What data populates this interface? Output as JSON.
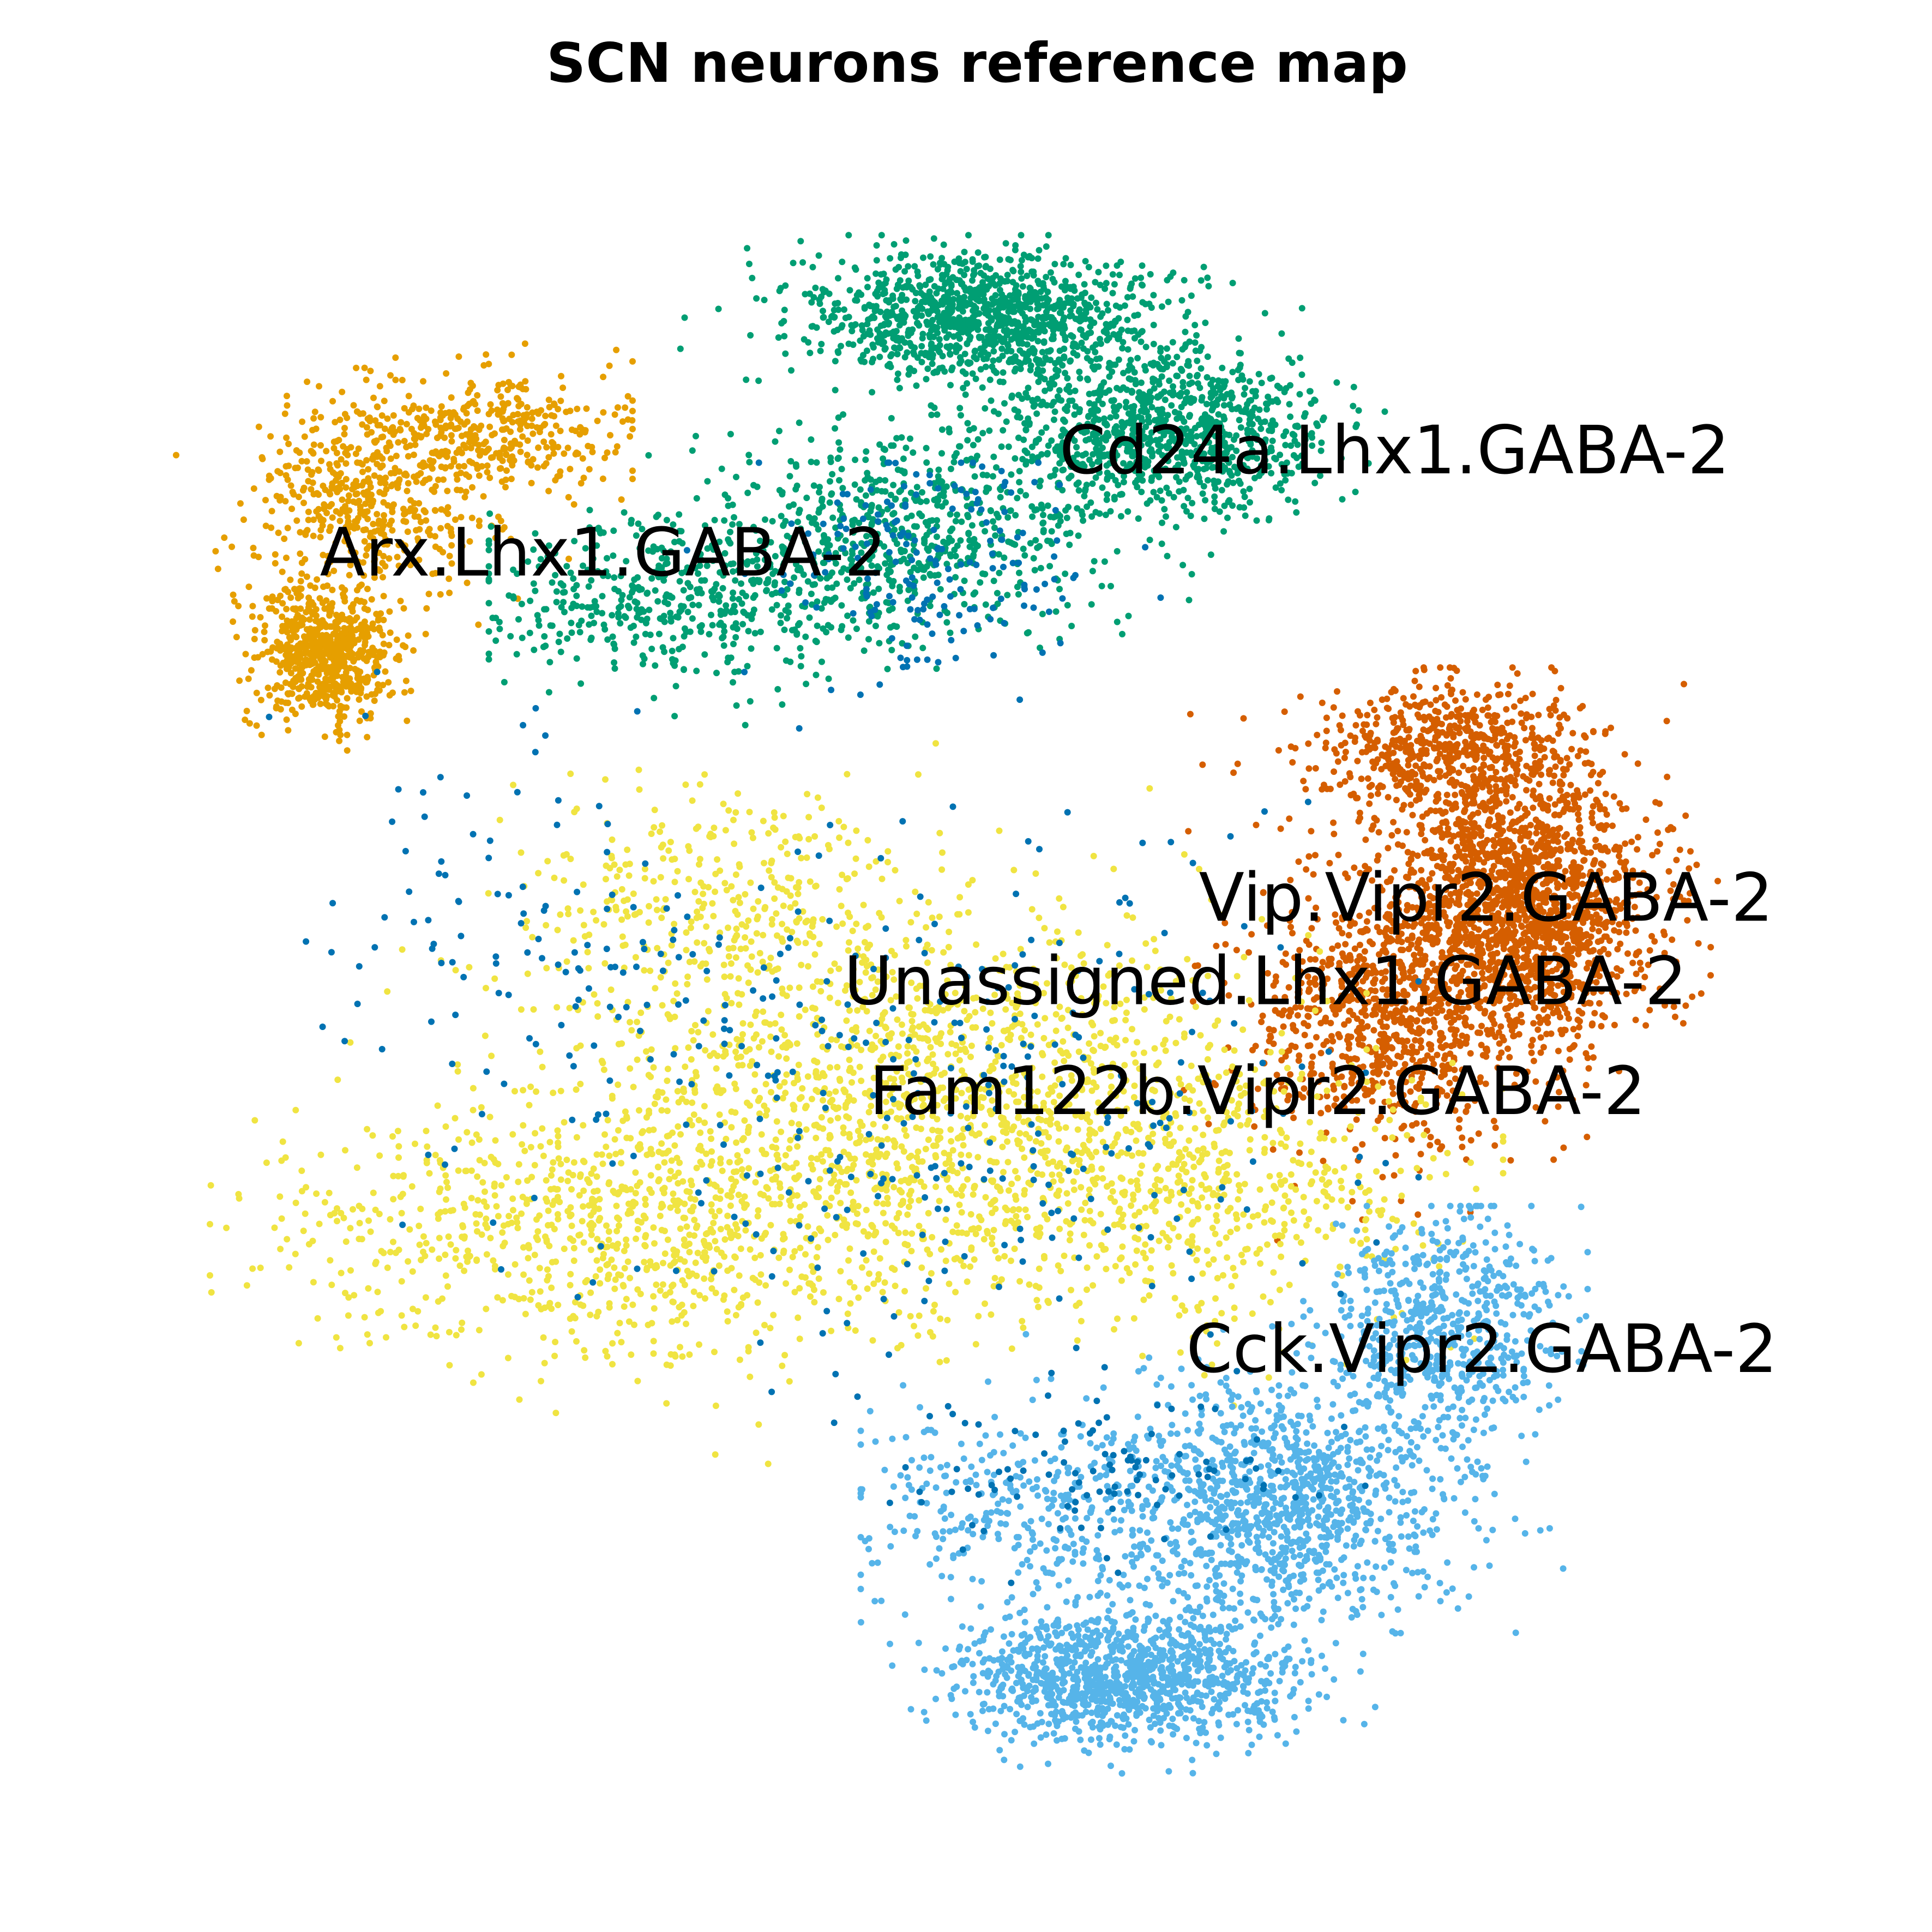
{
  "chart_data": {
    "type": "scatter",
    "title": "SCN neurons reference map",
    "xlabel": "",
    "ylabel": "",
    "axes_visible": false,
    "grid": false,
    "legend": "on-data",
    "clusters": [
      {
        "name": "Arx.Lhx1.GABA-2",
        "color": "#E69F00",
        "label_position": [
          -8.2,
          6.95
        ],
        "extent": {
          "x": [
            -9.9,
            -4.5
          ],
          "y": [
            2.8,
            9.8
          ]
        },
        "density": "medium",
        "centers": [
          {
            "x": -8.15,
            "y": 5.7,
            "weight": 0.45,
            "spread": [
              0.55,
              0.6
            ]
          },
          {
            "x": -7.6,
            "y": 7.7,
            "weight": 0.3,
            "spread": [
              1.0,
              0.75
            ]
          },
          {
            "x": -6.2,
            "y": 8.6,
            "weight": 0.25,
            "spread": [
              1.2,
              0.55
            ]
          }
        ]
      },
      {
        "name": "Cd24a.Lhx1.GABA-2",
        "color": "#009E73",
        "label_position": [
          0.55,
          8.3
        ],
        "extent": {
          "x": [
            -6.2,
            4.4
          ],
          "y": [
            4.0,
            11.2
          ]
        },
        "density": "high",
        "centers": [
          {
            "x": -0.3,
            "y": 10.1,
            "weight": 0.35,
            "spread": [
              1.4,
              0.55
            ]
          },
          {
            "x": 1.8,
            "y": 8.6,
            "weight": 0.3,
            "spread": [
              1.3,
              0.7
            ]
          },
          {
            "x": -1.2,
            "y": 7.3,
            "weight": 0.2,
            "spread": [
              1.6,
              0.9
            ]
          },
          {
            "x": -4.0,
            "y": 6.4,
            "weight": 0.15,
            "spread": [
              1.6,
              0.7
            ]
          }
        ]
      },
      {
        "name": "Vip.Vipr2.GABA-2",
        "color": "#D55E00",
        "label_position": [
          2.2,
          2.4
        ],
        "extent": {
          "x": [
            2.0,
            8.5
          ],
          "y": [
            -2.8,
            5.5
          ]
        },
        "density": "high",
        "centers": [
          {
            "x": 6.0,
            "y": 2.3,
            "weight": 0.55,
            "spread": [
              1.0,
              1.2
            ]
          },
          {
            "x": 4.4,
            "y": 0.9,
            "weight": 0.25,
            "spread": [
              1.1,
              1.2
            ]
          },
          {
            "x": 5.2,
            "y": 4.4,
            "weight": 0.2,
            "spread": [
              1.1,
              0.6
            ]
          }
        ]
      },
      {
        "name": "Unassigned.Lhx1.GABA-2",
        "color": "#0072B2",
        "label_position": [
          -2.0,
          1.3
        ],
        "extent": {
          "x": [
            -8.8,
            4.8
          ],
          "y": [
            -6.8,
            8.2
          ]
        },
        "density": "low",
        "centers": [
          {
            "x": -1.0,
            "y": 7.0,
            "weight": 0.25,
            "spread": [
              1.2,
              0.9
            ]
          },
          {
            "x": -1.0,
            "y": 0.0,
            "weight": 0.45,
            "spread": [
              3.2,
              2.6
            ]
          },
          {
            "x": 1.0,
            "y": -5.0,
            "weight": 0.15,
            "spread": [
              1.5,
              0.8
            ]
          },
          {
            "x": -5.5,
            "y": 2.0,
            "weight": 0.15,
            "spread": [
              1.8,
              1.8
            ]
          }
        ]
      },
      {
        "name": "Fam122b.Vipr2.GABA-2",
        "color": "#F0E442",
        "label_position": [
          -1.7,
          -0.15
        ],
        "extent": {
          "x": [
            -9.5,
            5.8
          ],
          "y": [
            -5.0,
            4.5
          ]
        },
        "density": "high",
        "centers": [
          {
            "x": -1.2,
            "y": 0.0,
            "weight": 0.4,
            "spread": [
              2.6,
              1.6
            ]
          },
          {
            "x": -4.6,
            "y": -1.9,
            "weight": 0.3,
            "spread": [
              2.6,
              1.2
            ]
          },
          {
            "x": 2.0,
            "y": -1.3,
            "weight": 0.2,
            "spread": [
              2.0,
              1.3
            ]
          },
          {
            "x": -3.6,
            "y": 2.4,
            "weight": 0.1,
            "spread": [
              1.6,
              1.0
            ]
          }
        ]
      },
      {
        "name": "Cck.Vipr2.GABA-2",
        "color": "#56B4E9",
        "label_position": [
          2.05,
          -3.55
        ],
        "extent": {
          "x": [
            -1.8,
            6.8
          ],
          "y": [
            -9.1,
            -1.6
          ]
        },
        "density": "high",
        "centers": [
          {
            "x": 1.3,
            "y": -7.8,
            "weight": 0.35,
            "spread": [
              1.3,
              0.55
            ]
          },
          {
            "x": 3.2,
            "y": -5.5,
            "weight": 0.35,
            "spread": [
              1.4,
              1.1
            ]
          },
          {
            "x": 5.1,
            "y": -3.2,
            "weight": 0.2,
            "spread": [
              0.9,
              1.0
            ]
          },
          {
            "x": 0.2,
            "y": -5.6,
            "weight": 0.1,
            "spread": [
              1.4,
              0.8
            ]
          }
        ]
      }
    ],
    "xlim": [
      -10.5,
      9.5
    ],
    "ylim": [
      -10.0,
      12.0
    ]
  }
}
